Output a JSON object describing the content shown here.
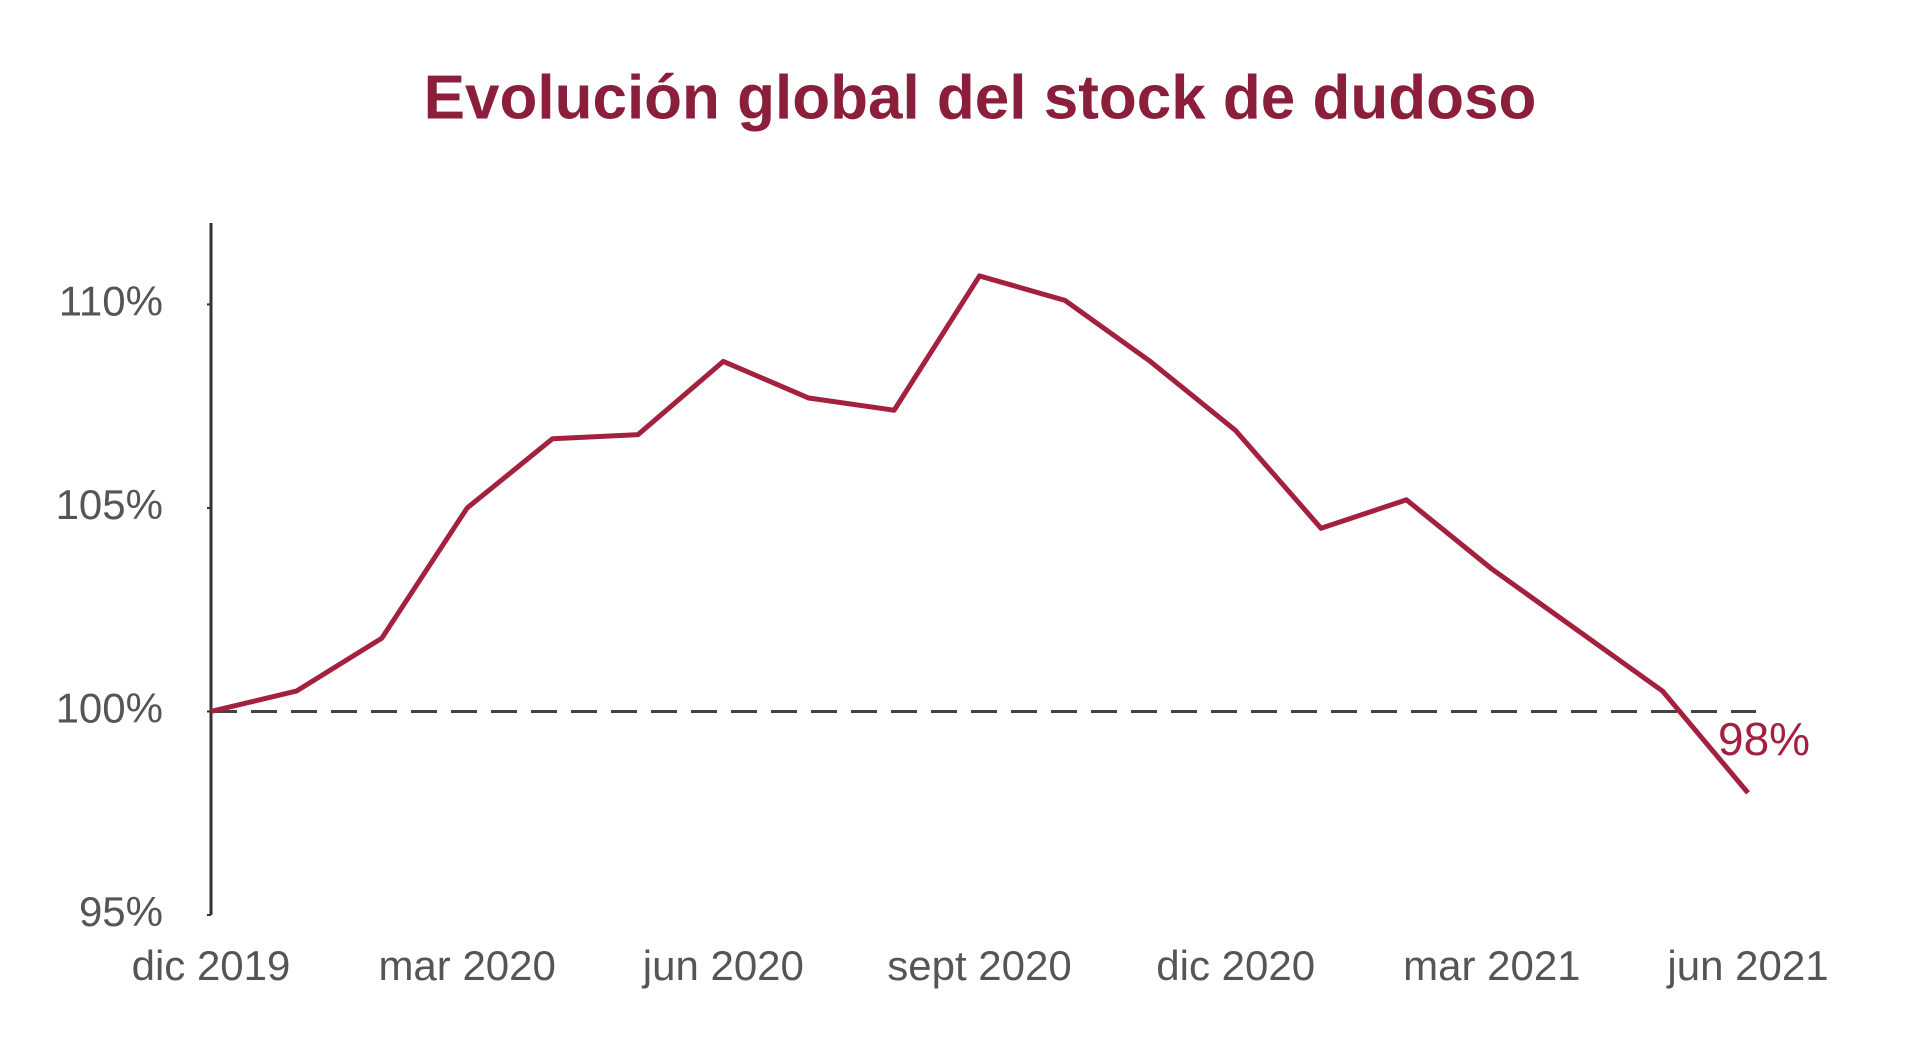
{
  "chart_data": {
    "type": "line",
    "title": "Evolución global del stock de dudoso",
    "categories": [
      "dic 2019",
      null,
      null,
      "mar 2020",
      null,
      null,
      "jun 2020",
      null,
      null,
      "sept 2020",
      null,
      null,
      "dic 2020",
      null,
      null,
      "mar 2021",
      null,
      null,
      "jun 2021"
    ],
    "values": [
      100,
      100.5,
      101.8,
      105.0,
      106.7,
      106.8,
      108.6,
      107.7,
      107.4,
      110.7,
      110.1,
      108.6,
      106.9,
      104.5,
      105.2,
      103.5,
      102.0,
      100.5,
      98.0
    ],
    "value_labels": [
      null,
      null,
      null,
      null,
      null,
      null,
      null,
      null,
      null,
      null,
      null,
      null,
      null,
      null,
      null,
      null,
      null,
      null,
      "98%"
    ],
    "color": "#a3213f",
    "ylim": [
      95,
      112
    ],
    "yticks": [
      {
        "value": 95,
        "label": "95%"
      },
      {
        "value": 100,
        "label": "100%"
      },
      {
        "value": 105,
        "label": "105%"
      },
      {
        "value": 110,
        "label": "110%"
      }
    ],
    "reference_line": 100,
    "grid": false
  }
}
